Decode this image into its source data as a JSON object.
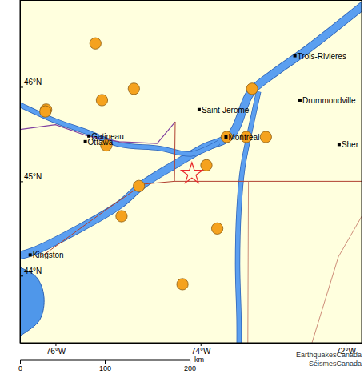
{
  "chart_data": {
    "type": "map",
    "xlim": [
      -76.49,
      -71.78
    ],
    "ylim": [
      43.29,
      46.92
    ],
    "xticks": [
      {
        "value": -76,
        "label": "76°W"
      },
      {
        "value": -74,
        "label": "74°W"
      },
      {
        "value": -72,
        "label": "72°W"
      }
    ],
    "yticks": [
      {
        "value": 44,
        "label": "44°N"
      },
      {
        "value": 45,
        "label": "45°N"
      },
      {
        "value": 46,
        "label": "46°N"
      }
    ],
    "series": [
      {
        "marker": "circle",
        "color": "#f5a21e",
        "x": [
          -75.45,
          -74.92,
          -75.36,
          -76.13,
          -76.14,
          -75.3,
          -73.29,
          -73.64,
          -73.37,
          -73.1,
          -73.92,
          -74.85,
          -75.09,
          -73.77,
          -74.25
        ],
        "values": [
          46.46,
          45.98,
          45.86,
          45.76,
          45.74,
          45.38,
          45.98,
          45.47,
          45.47,
          45.47,
          45.17,
          44.95,
          44.63,
          44.5,
          43.91
        ]
      },
      {
        "marker": "star",
        "color": "#e8282b",
        "x": [
          -74.12
        ],
        "values": [
          45.08
        ]
      }
    ],
    "cities": {
      "names": [
        "Trois-Rivieres",
        "Drummondville",
        "Saint-Jerome",
        "Montreal",
        "Gatineau",
        "Ottawa",
        "Kingston",
        "Sher"
      ],
      "x": [
        -72.7,
        -72.63,
        -74.02,
        -73.65,
        -75.54,
        -75.59,
        -76.35,
        -72.09
      ],
      "values": [
        46.33,
        45.86,
        45.76,
        45.47,
        45.48,
        45.42,
        44.22,
        45.39
      ]
    },
    "scale_bar": {
      "ticks": [
        0,
        100,
        200
      ],
      "unit": "km"
    },
    "credits": [
      "EarthquakesCanada",
      "SéismesCanada"
    ]
  }
}
